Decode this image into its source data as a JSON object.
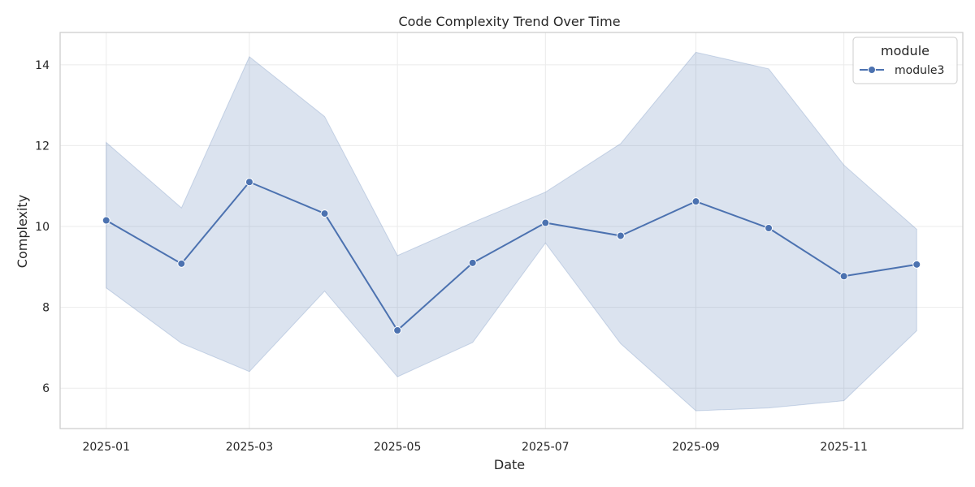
{
  "chart_data": {
    "type": "line",
    "title": "Code Complexity Trend Over Time",
    "xlabel": "Date",
    "ylabel": "Complexity",
    "x_tick_labels": [
      "2025-01",
      "2025-03",
      "2025-05",
      "2025-07",
      "2025-09",
      "2025-11"
    ],
    "x_tick_dates": [
      "2025-01-01",
      "2025-03-01",
      "2025-05-01",
      "2025-07-01",
      "2025-09-01",
      "2025-11-01"
    ],
    "xlim": [
      "2024-12-13",
      "2025-12-20"
    ],
    "y_tick_labels": [
      "6",
      "8",
      "10",
      "12",
      "14"
    ],
    "y_ticks": [
      6,
      8,
      10,
      12,
      14
    ],
    "ylim": [
      5.0,
      14.8
    ],
    "grid": true,
    "legend": {
      "title": "module",
      "placement": "top-right"
    },
    "x": [
      "2025-01-01",
      "2025-02-01",
      "2025-03-01",
      "2025-04-01",
      "2025-05-01",
      "2025-06-01",
      "2025-07-01",
      "2025-08-01",
      "2025-09-01",
      "2025-10-01",
      "2025-11-01",
      "2025-12-01"
    ],
    "series": [
      {
        "name": "module3",
        "color": "#4c72b0",
        "values": [
          10.15,
          9.08,
          11.1,
          10.32,
          7.43,
          9.1,
          10.09,
          9.77,
          10.62,
          9.96,
          8.77,
          9.06
        ],
        "ci_upper": [
          12.08,
          10.46,
          14.2,
          12.72,
          9.28,
          10.1,
          10.85,
          12.05,
          14.31,
          13.9,
          11.52,
          9.93
        ],
        "ci_lower": [
          8.48,
          7.11,
          6.41,
          8.4,
          6.28,
          7.13,
          9.59,
          7.1,
          5.44,
          5.51,
          5.69,
          7.42
        ]
      }
    ]
  }
}
